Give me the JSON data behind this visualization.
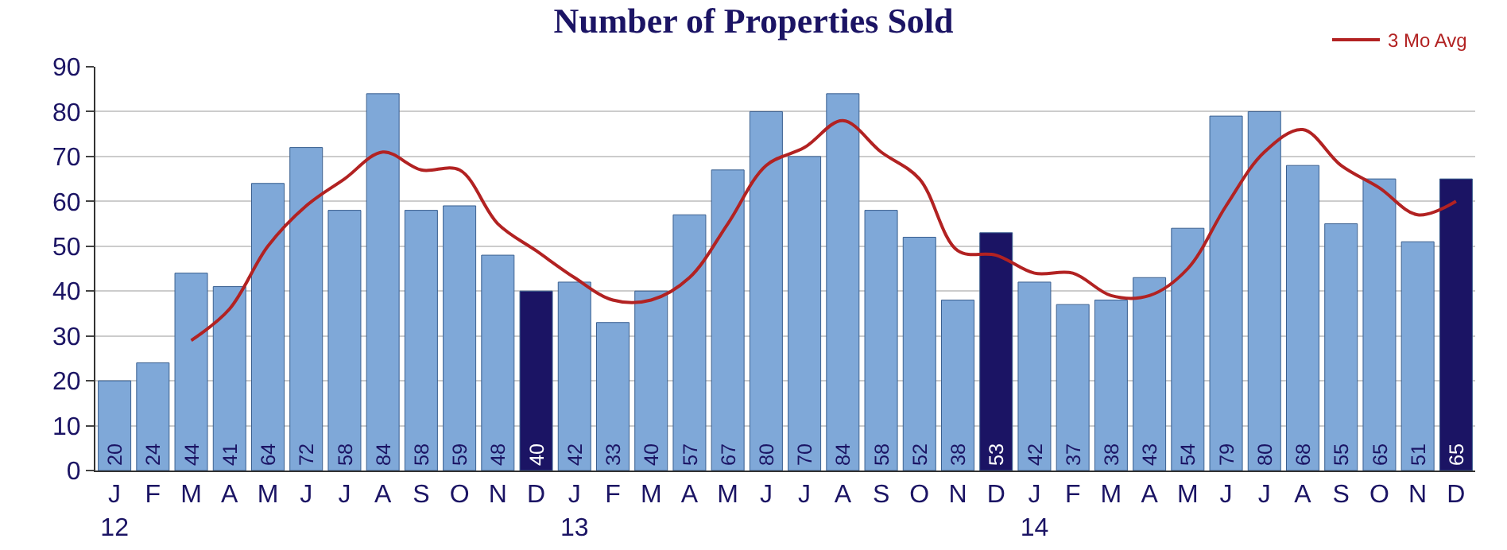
{
  "chart_data": {
    "type": "bar",
    "title": "Number of Properties Sold",
    "categories": [
      "J\n12",
      "F",
      "M",
      "A",
      "M",
      "J",
      "J",
      "A",
      "S",
      "O",
      "N",
      "D",
      "J\n13",
      "F",
      "M",
      "A",
      "M",
      "J",
      "J",
      "A",
      "S",
      "O",
      "N",
      "D",
      "J\n14",
      "F",
      "M",
      "A",
      "M",
      "J",
      "J",
      "A",
      "S",
      "O",
      "N",
      "D"
    ],
    "series": [
      {
        "colors": [
          "#7fa8d8",
          "#7fa8d8",
          "#7fa8d8",
          "#7fa8d8",
          "#7fa8d8",
          "#7fa8d8",
          "#7fa8d8",
          "#7fa8d8",
          "#7fa8d8",
          "#7fa8d8",
          "#7fa8d8",
          "#1b1464",
          "#7fa8d8",
          "#7fa8d8",
          "#7fa8d8",
          "#7fa8d8",
          "#7fa8d8",
          "#7fa8d8",
          "#7fa8d8",
          "#7fa8d8",
          "#7fa8d8",
          "#7fa8d8",
          "#7fa8d8",
          "#1b1464",
          "#7fa8d8",
          "#7fa8d8",
          "#7fa8d8",
          "#7fa8d8",
          "#7fa8d8",
          "#7fa8d8",
          "#7fa8d8",
          "#7fa8d8",
          "#7fa8d8",
          "#7fa8d8",
          "#7fa8d8",
          "#1b1464"
        ],
        "values": [
          20,
          24,
          44,
          41,
          64,
          72,
          58,
          84,
          58,
          59,
          48,
          40,
          42,
          33,
          40,
          57,
          67,
          80,
          70,
          84,
          58,
          52,
          38,
          53,
          42,
          37,
          38,
          43,
          54,
          79,
          80,
          68,
          55,
          65,
          51,
          65
        ],
        "value_labels": [
          "20",
          "24",
          "44",
          "41",
          "64",
          "72",
          "58",
          "84",
          "58",
          "59",
          "48",
          "40",
          "42",
          "33",
          "40",
          "57",
          "67",
          "80",
          "70",
          "84",
          "58",
          "52",
          "38",
          "53",
          "42",
          "37",
          "38",
          "43",
          "54",
          "79",
          "80",
          "68",
          "55",
          "65",
          "51",
          "65"
        ]
      },
      {
        "type": "line",
        "name": "3 Mo Avg",
        "color": "#b22222",
        "values": [
          null,
          null,
          29,
          36,
          50,
          59,
          65,
          71,
          67,
          67,
          55,
          49,
          43,
          38,
          38,
          43,
          55,
          68,
          72,
          78,
          71,
          65,
          49,
          48,
          44,
          44,
          39,
          39,
          45,
          59,
          71,
          76,
          68,
          63,
          57,
          60
        ]
      }
    ],
    "ylim": [
      0,
      90
    ],
    "yticks": [
      0,
      10,
      20,
      30,
      40,
      50,
      60,
      70,
      80,
      90
    ],
    "grid": "y",
    "legend": "top right"
  }
}
